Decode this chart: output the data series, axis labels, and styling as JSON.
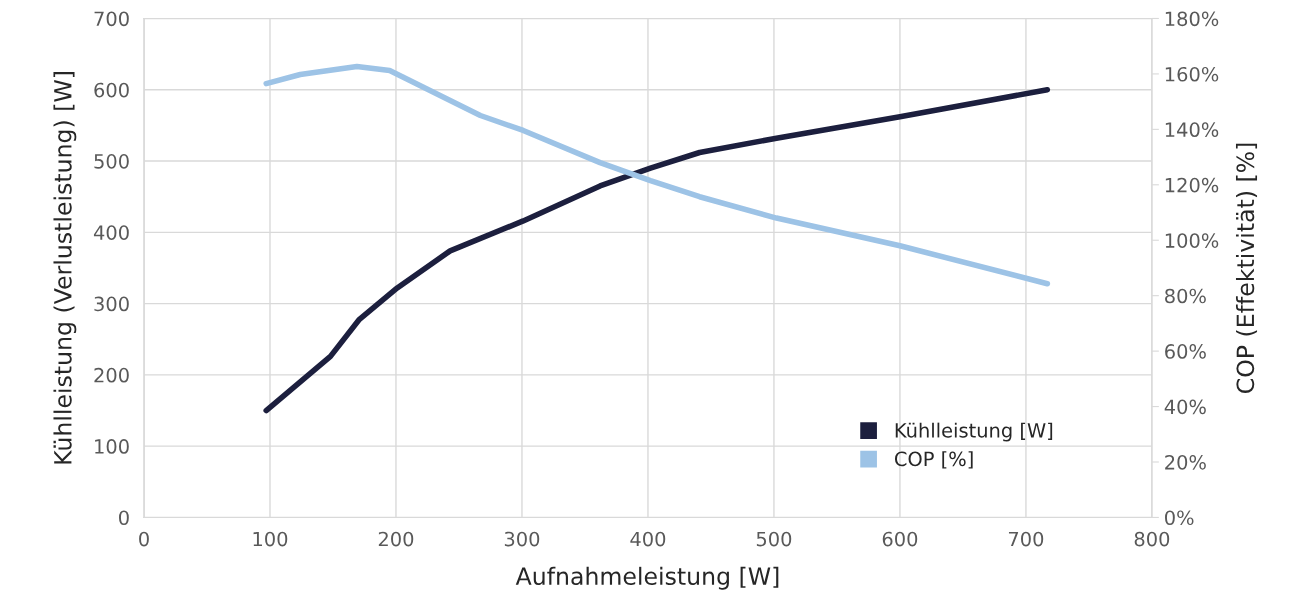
{
  "chart_data": {
    "type": "line",
    "xlabel": "Aufnahmeleistung [W]",
    "ylabel": "Kühlleistung (Verlustleistung) [W]",
    "y2label": "COP (Effektivität) [%]",
    "xlim": [
      0,
      800
    ],
    "xticks": [
      0,
      100,
      200,
      300,
      400,
      500,
      600,
      700,
      800
    ],
    "ylim": [
      0,
      700
    ],
    "yticks": [
      0,
      100,
      200,
      300,
      400,
      500,
      600,
      700
    ],
    "y2lim": [
      0,
      180
    ],
    "y2ticks": [
      {
        "value": 0,
        "label": "0%"
      },
      {
        "value": 20,
        "label": "20%"
      },
      {
        "value": 40,
        "label": "40%"
      },
      {
        "value": 60,
        "label": "60%"
      },
      {
        "value": 80,
        "label": "80%"
      },
      {
        "value": 100,
        "label": "100%"
      },
      {
        "value": 120,
        "label": "120%"
      },
      {
        "value": 140,
        "label": "140%"
      },
      {
        "value": 160,
        "label": "160%"
      },
      {
        "value": 180,
        "label": "180%"
      }
    ],
    "grid": true,
    "legend": "bottom right",
    "marker": "none",
    "line_style": "solid",
    "series": [
      {
        "name": "Kühlleistung [W]",
        "color": "#1c1f3e",
        "x": [
          97,
          148,
          171,
          201,
          243,
          301,
          362,
          402,
          441,
          502,
          600,
          717
        ],
        "values": [
          150,
          226,
          278,
          322,
          374,
          416,
          465,
          490,
          512,
          532,
          562,
          600
        ]
      },
      {
        "name": "COP [%]",
        "color": "#9dc3e6",
        "axis": "y2",
        "x": [
          97,
          124,
          169,
          195,
          227,
          267,
          301,
          362,
          402,
          441,
          502,
          600,
          717
        ],
        "values": [
          156.5,
          159.8,
          162.7,
          161.2,
          154,
          145,
          139.6,
          128,
          121.5,
          115.7,
          108,
          98,
          84.3
        ]
      }
    ]
  }
}
